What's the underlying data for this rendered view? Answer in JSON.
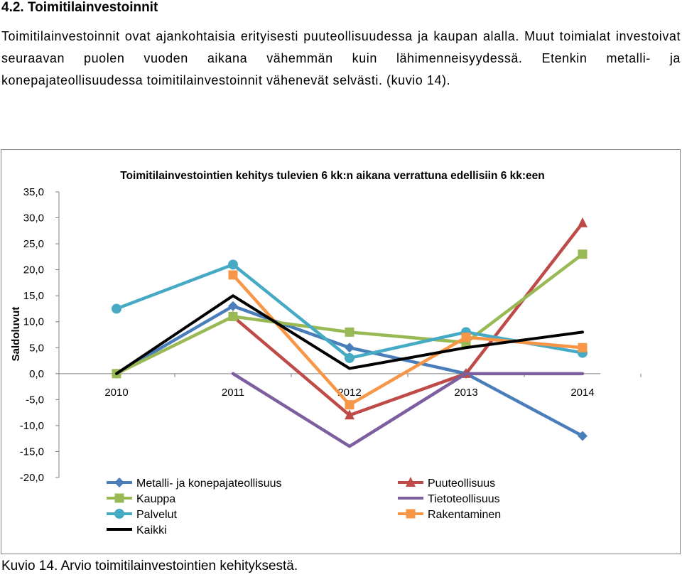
{
  "section": {
    "heading": "4.2. Toimitilainvestoinnit",
    "paragraph": "Toimitilainvestoinnit ovat ajankohtaisia erityisesti puuteollisuudessa ja kaupan alalla. Muut toimialat investoivat seuraavan puolen vuoden aikana vähemmän kuin lähimenneisyydessä. Etenkin metalli- ja konepajateollisuudessa toimitilainvestoinnit vähenevät selvästi. (kuvio 14).",
    "caption": "Kuvio 14. Arvio toimitilainvestointien kehityksestä."
  },
  "chart_data": {
    "type": "line",
    "title": "Toimitilainvestointien kehitys tulevien 6 kk:n aikana verrattuna edellisiin 6 kk:een",
    "xlabel": "",
    "ylabel": "Saldoluvut",
    "categories": [
      "2010",
      "2011",
      "2012",
      "2013",
      "2014"
    ],
    "ylim": [
      -20,
      35
    ],
    "yticks": [
      "35,0",
      "30,0",
      "25,0",
      "20,0",
      "15,0",
      "10,0",
      "5,0",
      "0,0",
      "-5,0",
      "-10,0",
      "-15,0",
      "-20,0"
    ],
    "grid": false,
    "legend_position": "bottom",
    "series": [
      {
        "name": "Metalli- ja konepajateollisuus",
        "values": [
          0,
          13,
          5,
          0,
          -12
        ],
        "color": "#4a7ebb",
        "marker": "diamond"
      },
      {
        "name": "Puuteollisuus",
        "values": [
          null,
          11,
          -8,
          0,
          29
        ],
        "color": "#be4b48",
        "marker": "triangle"
      },
      {
        "name": "Kauppa",
        "values": [
          0,
          11,
          8,
          6,
          23
        ],
        "color": "#98b954",
        "marker": "square"
      },
      {
        "name": "Tietoteollisuus",
        "values": [
          null,
          0,
          -14,
          0,
          0
        ],
        "color": "#7d5fa0",
        "marker": "none"
      },
      {
        "name": "Palvelut",
        "values": [
          12.5,
          21,
          3,
          8,
          4
        ],
        "color": "#46aac5",
        "marker": "circle"
      },
      {
        "name": "Rakentaminen",
        "values": [
          null,
          19,
          -6,
          7,
          5
        ],
        "color": "#f79646",
        "marker": "square"
      },
      {
        "name": "Kaikki",
        "values": [
          0,
          15,
          1,
          5,
          8
        ],
        "color": "#000000",
        "marker": "none"
      }
    ]
  }
}
